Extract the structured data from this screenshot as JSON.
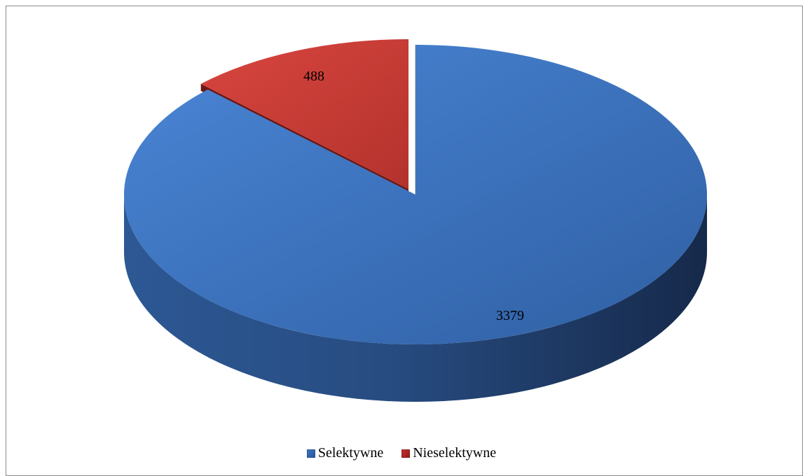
{
  "chart_data": {
    "type": "pie",
    "title": "",
    "style": "3d-exploded",
    "categories": [
      "Selektywne",
      "Nieselektywne"
    ],
    "values": [
      3379,
      488
    ],
    "colors": [
      "#3a76c4",
      "#c9302c"
    ],
    "data_labels": [
      "3379",
      "488"
    ],
    "legend": {
      "position": "bottom",
      "entries": [
        "Selektywne",
        "Nieselektywne"
      ]
    }
  }
}
